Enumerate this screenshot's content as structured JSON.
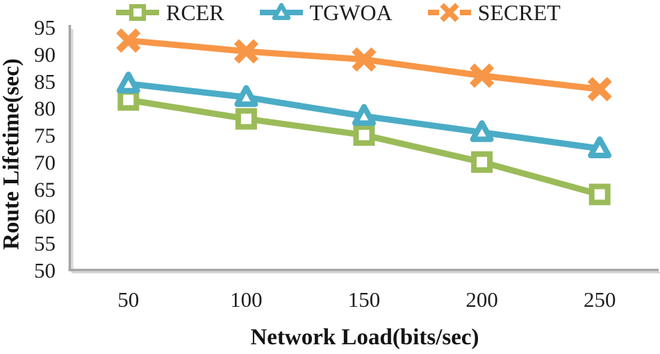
{
  "figure": {
    "background": "#ffffff",
    "text_color": "#1f1f1f",
    "axis_color": "#a3a3a3",
    "axis_shadow_color": "#d8d8d8"
  },
  "chart_data": {
    "type": "line",
    "title": "",
    "categories": [
      "50",
      "100",
      "150",
      "200",
      "250"
    ],
    "series": [
      {
        "name": "RCER",
        "color": "#9BBB59",
        "marker": "square",
        "values": [
          81.5,
          78,
          75,
          70,
          64
        ]
      },
      {
        "name": "TGWOA",
        "color": "#4BACC6",
        "marker": "triangle",
        "values": [
          84.5,
          82,
          78.5,
          75.5,
          72.5
        ]
      },
      {
        "name": "SECRET",
        "color": "#F79646",
        "marker": "x",
        "values": [
          92.5,
          90.5,
          89,
          86,
          83.5
        ]
      }
    ],
    "xlabel": "Network Load(bits/sec)",
    "ylabel": "Route Lifetime(sec)",
    "ylim": [
      50,
      95
    ],
    "ytick_step": 5,
    "grid": false,
    "legend_position": "top",
    "line_style": "solid"
  }
}
